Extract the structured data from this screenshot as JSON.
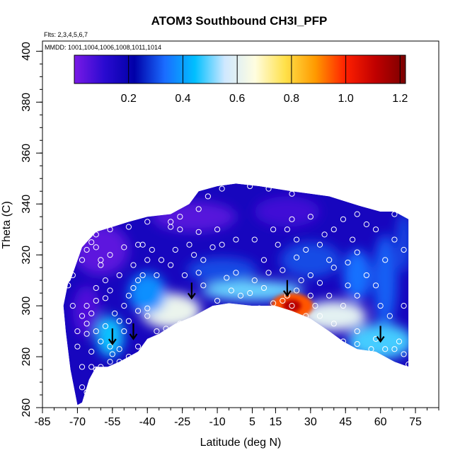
{
  "chart_data": {
    "type": "heatmap",
    "title": "ATOM3 Southbound CH3I_PFP",
    "flights_note": "Flts: 2,3,4,5,6,7",
    "dates_note": "MMDD: 1001,1004,1006,1008,1011,1014",
    "xlabel": "Latitude (deg N)",
    "ylabel": "Theta (C)",
    "xlim": [
      -85,
      85
    ],
    "ylim": [
      260,
      404
    ],
    "x_ticks": [
      -85,
      -70,
      -55,
      -40,
      -25,
      -10,
      5,
      15,
      30,
      45,
      60,
      75
    ],
    "y_ticks": [
      260,
      280,
      300,
      320,
      340,
      360,
      380,
      400
    ],
    "colorbar": {
      "min": 0.0,
      "max": 1.22,
      "ticks": [
        0.2,
        0.4,
        0.6,
        0.8,
        1.0,
        1.2
      ],
      "tick_labels": [
        "0.2",
        "0.4",
        "0.6",
        "0.8",
        "1.0",
        "1.2"
      ],
      "colors": [
        "#7a1ae6",
        "#2a0ad0",
        "#0000a8",
        "#1a6cff",
        "#00bfff",
        "#cfe8ff",
        "#fffde0",
        "#ffe14a",
        "#ff9a00",
        "#ff2000",
        "#c00000",
        "#7a0000"
      ]
    },
    "upper_boundary": [
      [
        -73,
        310
      ],
      [
        -68,
        323
      ],
      [
        -62,
        329
      ],
      [
        -55,
        331
      ],
      [
        -48,
        333
      ],
      [
        -40,
        335
      ],
      [
        -30,
        336
      ],
      [
        -22,
        340
      ],
      [
        -18,
        345
      ],
      [
        -10,
        347
      ],
      [
        -2,
        348
      ],
      [
        8,
        347
      ],
      [
        15,
        346
      ],
      [
        22,
        345
      ],
      [
        30,
        344
      ],
      [
        38,
        343
      ],
      [
        45,
        341
      ],
      [
        52,
        339
      ],
      [
        60,
        337
      ],
      [
        66,
        337
      ],
      [
        72,
        334
      ]
    ],
    "lower_boundary": [
      [
        72,
        276
      ],
      [
        66,
        278
      ],
      [
        58,
        282
      ],
      [
        50,
        283
      ],
      [
        44,
        286
      ],
      [
        38,
        290
      ],
      [
        30,
        295
      ],
      [
        22,
        298
      ],
      [
        15,
        300
      ],
      [
        5,
        300
      ],
      [
        -5,
        301
      ],
      [
        -12,
        300
      ],
      [
        -20,
        296
      ],
      [
        -28,
        293
      ],
      [
        -35,
        289
      ],
      [
        -40,
        287
      ],
      [
        -44,
        282
      ],
      [
        -48,
        280
      ],
      [
        -52,
        278
      ],
      [
        -57,
        276
      ],
      [
        -62,
        276
      ],
      [
        -65,
        271
      ],
      [
        -68,
        262
      ],
      [
        -70,
        261
      ],
      [
        -73,
        275
      ],
      [
        -75,
        290
      ],
      [
        -76,
        300
      ],
      [
        -74,
        309
      ]
    ],
    "field_features": [
      {
        "x": 22,
        "y": 300,
        "rx": 9,
        "ry": 5,
        "value": 0.95
      },
      {
        "x": 22,
        "y": 300,
        "rx": 4,
        "ry": 2.5,
        "value": 1.12
      },
      {
        "x": 27,
        "y": 297,
        "rx": 5,
        "ry": 2.5,
        "value": 0.85
      },
      {
        "x": -30,
        "y": 298,
        "rx": 13,
        "ry": 7,
        "value": 0.62
      },
      {
        "x": 5,
        "y": 306,
        "rx": 22,
        "ry": 4,
        "value": 0.5
      },
      {
        "x": 40,
        "y": 296,
        "rx": 14,
        "ry": 6,
        "value": 0.6
      },
      {
        "x": 60,
        "y": 286,
        "rx": 14,
        "ry": 7,
        "value": 0.48
      },
      {
        "x": -56,
        "y": 288,
        "rx": 6,
        "ry": 8,
        "value": 0.45
      },
      {
        "x": -40,
        "y": 305,
        "rx": 8,
        "ry": 8,
        "value": 0.38
      },
      {
        "x": 30,
        "y": 318,
        "rx": 13,
        "ry": 7,
        "value": 0.3
      },
      {
        "x": 62,
        "y": 310,
        "rx": 5,
        "ry": 18,
        "value": 0.32
      },
      {
        "x": 50,
        "y": 312,
        "rx": 6,
        "ry": 10,
        "value": 0.34
      },
      {
        "x": -8,
        "y": 314,
        "rx": 15,
        "ry": 5,
        "value": 0.3
      },
      {
        "x": 70,
        "y": 325,
        "rx": 3,
        "ry": 12,
        "value": 0.3
      },
      {
        "x": -60,
        "y": 322,
        "rx": 12,
        "ry": 10,
        "value": 0.04
      },
      {
        "x": -66,
        "y": 298,
        "rx": 6,
        "ry": 10,
        "value": 0.06
      },
      {
        "x": -20,
        "y": 335,
        "rx": 18,
        "ry": 6,
        "value": 0.05
      },
      {
        "x": 20,
        "y": 337,
        "rx": 14,
        "ry": 6,
        "value": 0.08
      }
    ],
    "samples": [
      [
        -68,
        318
      ],
      [
        -66,
        322
      ],
      [
        -64,
        325
      ],
      [
        -60,
        318
      ],
      [
        -58,
        310
      ],
      [
        -62,
        307
      ],
      [
        -58,
        303
      ],
      [
        -66,
        300
      ],
      [
        -64,
        297
      ],
      [
        -66,
        293
      ],
      [
        -66,
        289
      ],
      [
        -62,
        290
      ],
      [
        -60,
        286
      ],
      [
        -56,
        284
      ],
      [
        -55,
        281
      ],
      [
        -52,
        283
      ],
      [
        -56,
        278
      ],
      [
        -60,
        276
      ],
      [
        -62,
        275
      ],
      [
        -64,
        276
      ],
      [
        -68,
        268
      ],
      [
        -68,
        276
      ],
      [
        -70,
        290
      ],
      [
        -72,
        300
      ],
      [
        -74,
        308
      ],
      [
        -54,
        297
      ],
      [
        -52,
        294
      ],
      [
        -50,
        290
      ],
      [
        -50,
        300
      ],
      [
        -48,
        304
      ],
      [
        -46,
        307
      ],
      [
        -44,
        310
      ],
      [
        -42,
        312
      ],
      [
        -40,
        296
      ],
      [
        -40,
        299
      ],
      [
        -36,
        312
      ],
      [
        -38,
        322
      ],
      [
        -44,
        324
      ],
      [
        -42,
        324
      ],
      [
        -50,
        323
      ],
      [
        -56,
        320
      ],
      [
        -60,
        316
      ],
      [
        -62,
        323
      ],
      [
        -30,
        331
      ],
      [
        -26,
        330
      ],
      [
        -22,
        324
      ],
      [
        -18,
        329
      ],
      [
        -20,
        320
      ],
      [
        -18,
        313
      ],
      [
        -12,
        323
      ],
      [
        -8,
        324
      ],
      [
        -6,
        311
      ],
      [
        -2,
        313
      ],
      [
        0,
        304
      ],
      [
        4,
        305
      ],
      [
        10,
        307
      ],
      [
        14,
        301
      ],
      [
        18,
        302
      ],
      [
        20,
        304
      ],
      [
        24,
        306
      ],
      [
        30,
        304
      ],
      [
        34,
        309
      ],
      [
        38,
        304
      ],
      [
        34,
        296
      ],
      [
        28,
        296
      ],
      [
        22,
        300
      ],
      [
        12,
        313
      ],
      [
        10,
        318
      ],
      [
        16,
        324
      ],
      [
        20,
        330
      ],
      [
        22,
        334
      ],
      [
        30,
        335
      ],
      [
        36,
        328
      ],
      [
        40,
        330
      ],
      [
        44,
        334
      ],
      [
        50,
        336
      ],
      [
        54,
        332
      ],
      [
        50,
        321
      ],
      [
        46,
        317
      ],
      [
        40,
        315
      ],
      [
        38,
        318
      ],
      [
        28,
        322
      ],
      [
        24,
        319
      ],
      [
        30,
        312
      ],
      [
        44,
        300
      ],
      [
        50,
        304
      ],
      [
        58,
        308
      ],
      [
        60,
        300
      ],
      [
        64,
        296
      ],
      [
        68,
        286
      ],
      [
        62,
        283
      ],
      [
        56,
        283
      ],
      [
        50,
        285
      ],
      [
        44,
        286
      ],
      [
        72,
        277
      ],
      [
        70,
        300
      ],
      [
        70,
        322
      ],
      [
        66,
        336
      ],
      [
        54,
        345
      ],
      [
        40,
        348
      ],
      [
        30,
        346
      ],
      [
        22,
        344
      ],
      [
        12,
        346
      ],
      [
        4,
        347
      ],
      [
        -8,
        346
      ],
      [
        -14,
        343
      ],
      [
        -18,
        338
      ],
      [
        -26,
        335
      ],
      [
        -30,
        333
      ],
      [
        -40,
        333
      ],
      [
        -48,
        331
      ],
      [
        -56,
        330
      ],
      [
        -62,
        328
      ],
      [
        -70,
        322
      ],
      [
        -72,
        312
      ],
      [
        -36,
        290
      ],
      [
        -32,
        291
      ],
      [
        -26,
        293
      ],
      [
        -22,
        294
      ],
      [
        -14,
        296
      ],
      [
        -6,
        298
      ],
      [
        2,
        298
      ],
      [
        8,
        299
      ],
      [
        40,
        293
      ],
      [
        50,
        290
      ],
      [
        58,
        287
      ],
      [
        66,
        283
      ],
      [
        70,
        281
      ],
      [
        -44,
        284
      ],
      [
        -48,
        280
      ],
      [
        -52,
        278
      ],
      [
        -60,
        270
      ],
      [
        -66,
        266
      ],
      [
        -40,
        318
      ],
      [
        -30,
        316
      ],
      [
        -24,
        312
      ],
      [
        -16,
        308
      ],
      [
        -10,
        302
      ],
      [
        -4,
        306
      ],
      [
        6,
        310
      ],
      [
        18,
        314
      ],
      [
        26,
        310
      ],
      [
        32,
        300
      ],
      [
        46,
        308
      ],
      [
        54,
        312
      ],
      [
        62,
        318
      ],
      [
        66,
        326
      ],
      [
        58,
        330
      ],
      [
        48,
        326
      ],
      [
        34,
        324
      ],
      [
        24,
        326
      ],
      [
        14,
        330
      ],
      [
        6,
        326
      ],
      [
        -2,
        326
      ],
      [
        -10,
        330
      ],
      [
        -16,
        318
      ],
      [
        -28,
        322
      ],
      [
        -34,
        318
      ],
      [
        -46,
        316
      ],
      [
        -52,
        312
      ],
      [
        -56,
        306
      ],
      [
        -62,
        302
      ],
      [
        -68,
        296
      ],
      [
        -70,
        284
      ],
      [
        -64,
        282
      ],
      [
        -58,
        292
      ],
      [
        -48,
        294
      ],
      [
        -44,
        298
      ]
    ],
    "arrows": [
      [
        -55,
        285
      ],
      [
        -46,
        287
      ],
      [
        -21,
        303
      ],
      [
        20,
        304
      ],
      [
        60,
        286
      ]
    ]
  }
}
